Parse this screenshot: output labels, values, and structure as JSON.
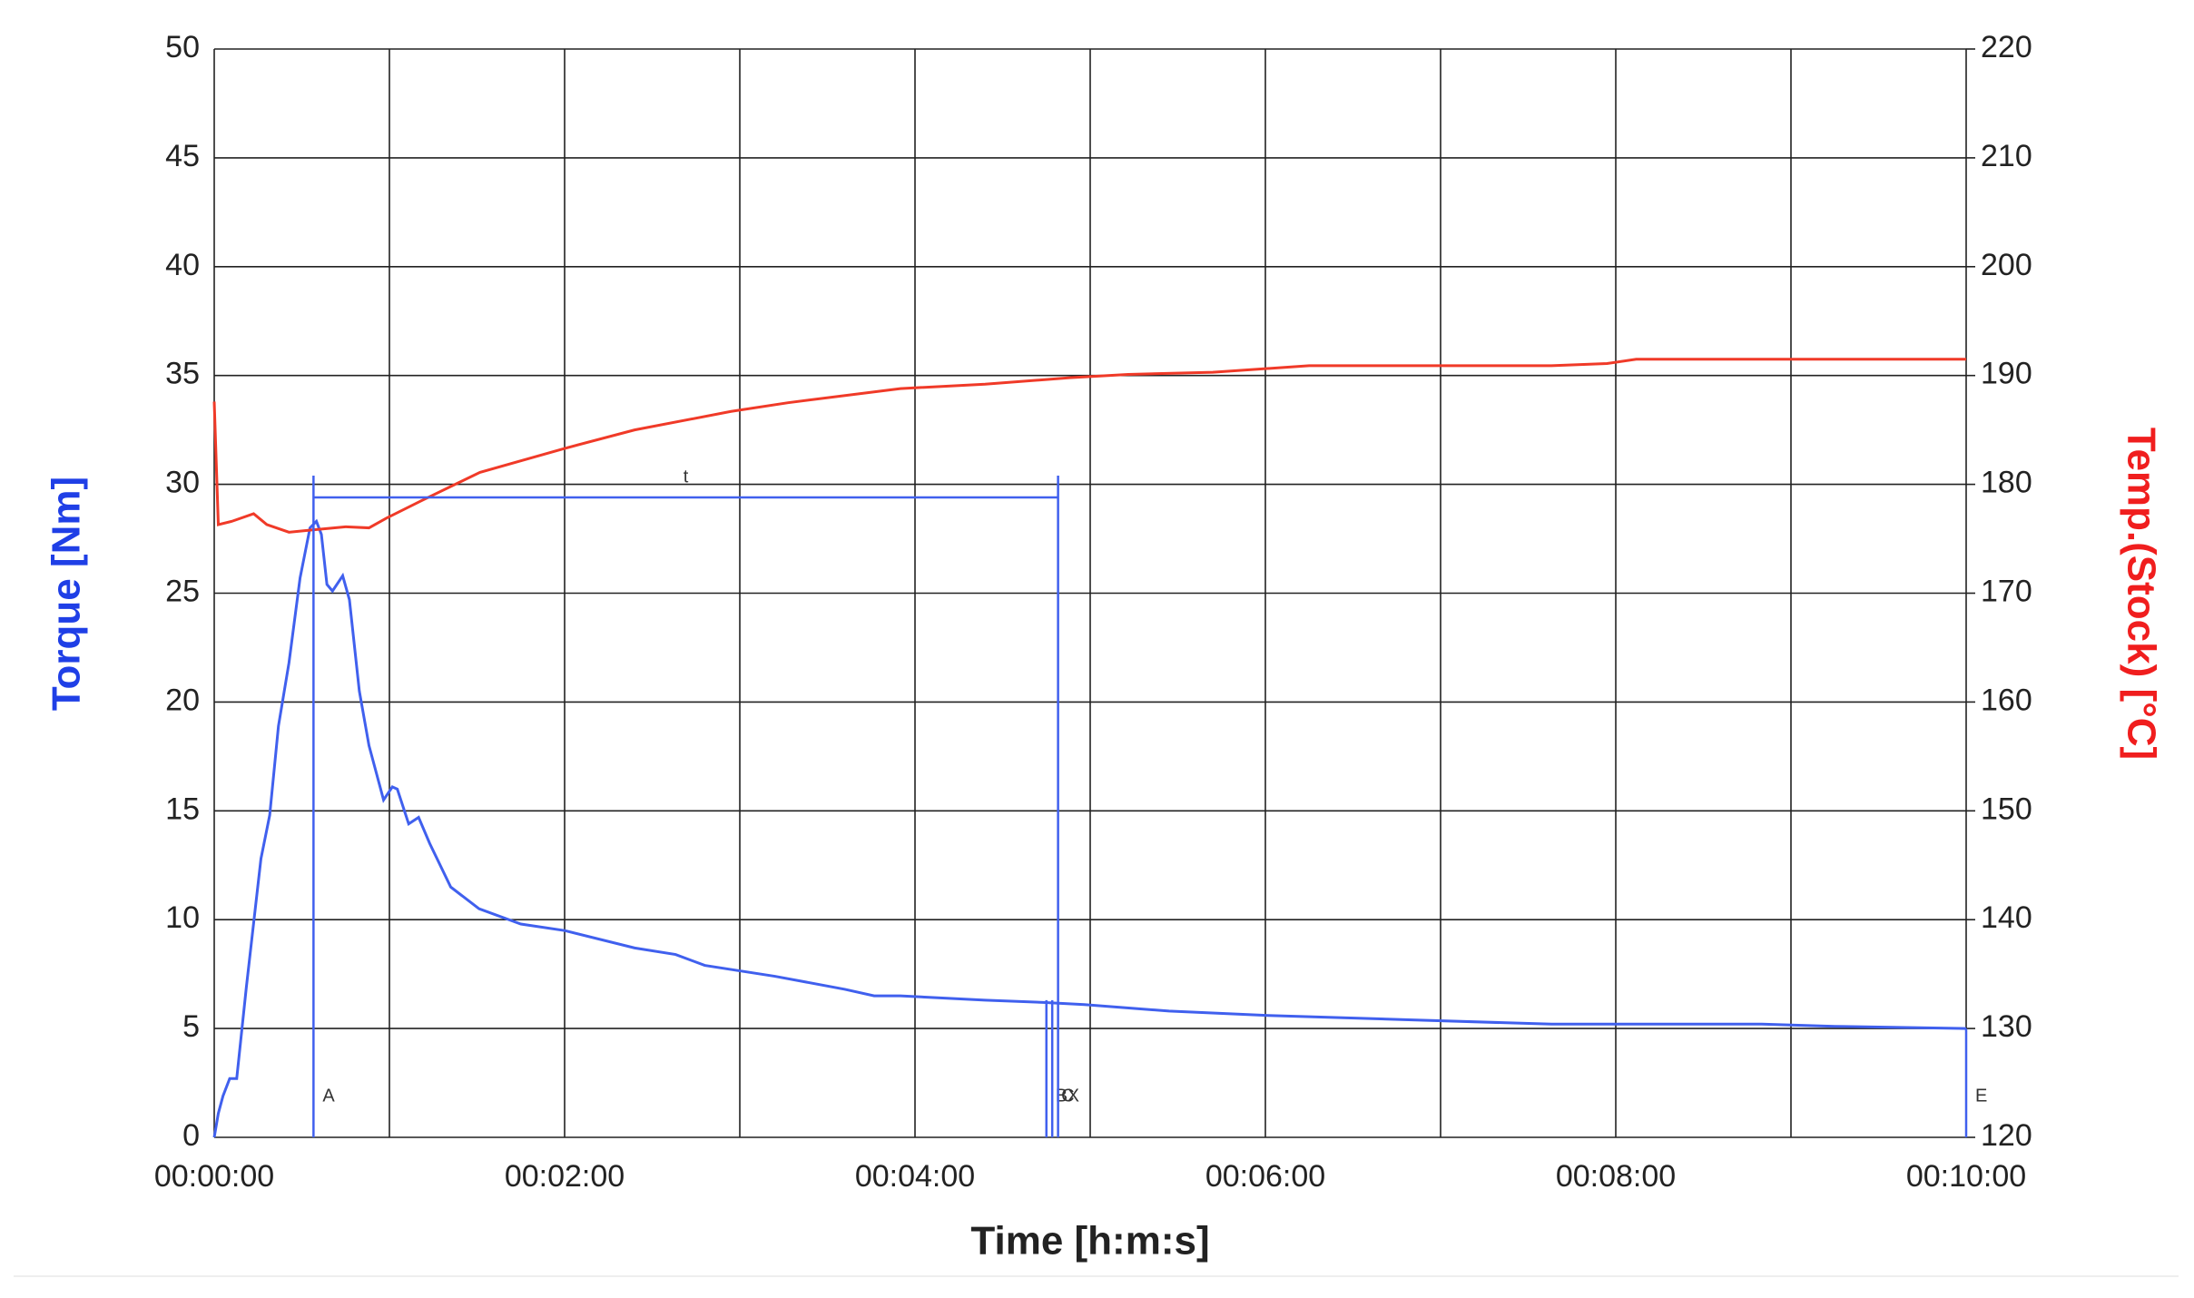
{
  "chart_data": {
    "type": "line",
    "xlabel": "Time [h:m:s]",
    "ylabel": "Torque [Nm]",
    "y2label": "Temp.(Stock) [°C]",
    "ylabel_color": "#1f3fe6",
    "y2label_color": "#f01e1e",
    "xlim": [
      0,
      600
    ],
    "ylim": [
      0,
      50
    ],
    "y2lim": [
      120,
      220
    ],
    "xticks": [
      {
        "value": 0,
        "label": "00:00:00"
      },
      {
        "value": 120,
        "label": "00:02:00"
      },
      {
        "value": 240,
        "label": "00:04:00"
      },
      {
        "value": 360,
        "label": "00:06:00"
      },
      {
        "value": 480,
        "label": "00:08:00"
      },
      {
        "value": 600,
        "label": "00:10:00"
      }
    ],
    "x_minor_ticks": [
      60,
      180,
      300,
      420,
      540
    ],
    "yticks": [
      0,
      5,
      10,
      15,
      20,
      25,
      30,
      35,
      40,
      45,
      50
    ],
    "y2ticks": [
      120,
      130,
      140,
      150,
      160,
      170,
      180,
      190,
      200,
      210,
      220
    ],
    "grid": true,
    "series": [
      {
        "name": "Torque",
        "color": "#4060ee",
        "axis": "y",
        "x": [
          0,
          1.4,
          3,
          5.3,
          7.7,
          11,
          16,
          19,
          22,
          25.6,
          29.4,
          32.8,
          35,
          36.7,
          38.6,
          40.5,
          44,
          46.3,
          49.7,
          53,
          58,
          61,
          62.7,
          66.6,
          70,
          73.8,
          81,
          90.7,
          105,
          120,
          144,
          158,
          168,
          192,
          216,
          226,
          235,
          264,
          284,
          298,
          327,
          361,
          409,
          458,
          506,
          530,
          555,
          600
        ],
        "values": [
          0,
          1.1,
          1.9,
          2.7,
          2.7,
          6.9,
          12.8,
          14.8,
          18.9,
          21.8,
          25.7,
          28,
          28.3,
          27.7,
          25.4,
          25.1,
          25.8,
          24.7,
          20.5,
          18,
          15.5,
          16.1,
          16,
          14.4,
          14.7,
          13.5,
          11.5,
          10.5,
          9.8,
          9.5,
          8.7,
          8.4,
          7.9,
          7.4,
          6.8,
          6.5,
          6.5,
          6.3,
          6.2,
          6.1,
          5.8,
          5.6,
          5.4,
          5.2,
          5.2,
          5.2,
          5.1,
          5.0
        ]
      },
      {
        "name": "Temp.(Stock)",
        "color": "#f03a28",
        "axis": "y2",
        "x": [
          0,
          1.4,
          6,
          13.5,
          18,
          25.6,
          33,
          45,
          53,
          59,
          71,
          91,
          120,
          144,
          177,
          196.5,
          235,
          264,
          293,
          313,
          342,
          375,
          409,
          458,
          477,
          487,
          600
        ],
        "values": [
          187.6,
          176.3,
          176.6,
          177.3,
          176.3,
          175.6,
          175.8,
          176.1,
          176,
          176.9,
          178.5,
          181.1,
          183.3,
          185,
          186.7,
          187.5,
          188.8,
          189.2,
          189.8,
          190.1,
          190.3,
          190.9,
          190.9,
          190.9,
          191.1,
          191.5,
          191.5
        ]
      }
    ],
    "markers": [
      {
        "label": "A",
        "x": 34,
        "top": 30.4
      },
      {
        "label": "B",
        "x": 285,
        "top": 6.3
      },
      {
        "label": "C",
        "x": 287,
        "top": 6.3
      },
      {
        "label": "X",
        "x": 289,
        "top": 30.4
      },
      {
        "label": "E",
        "x": 600,
        "top": 5.0
      }
    ],
    "interval": {
      "label": "t",
      "x0": 34,
      "x1": 289,
      "y": 29.4
    }
  }
}
